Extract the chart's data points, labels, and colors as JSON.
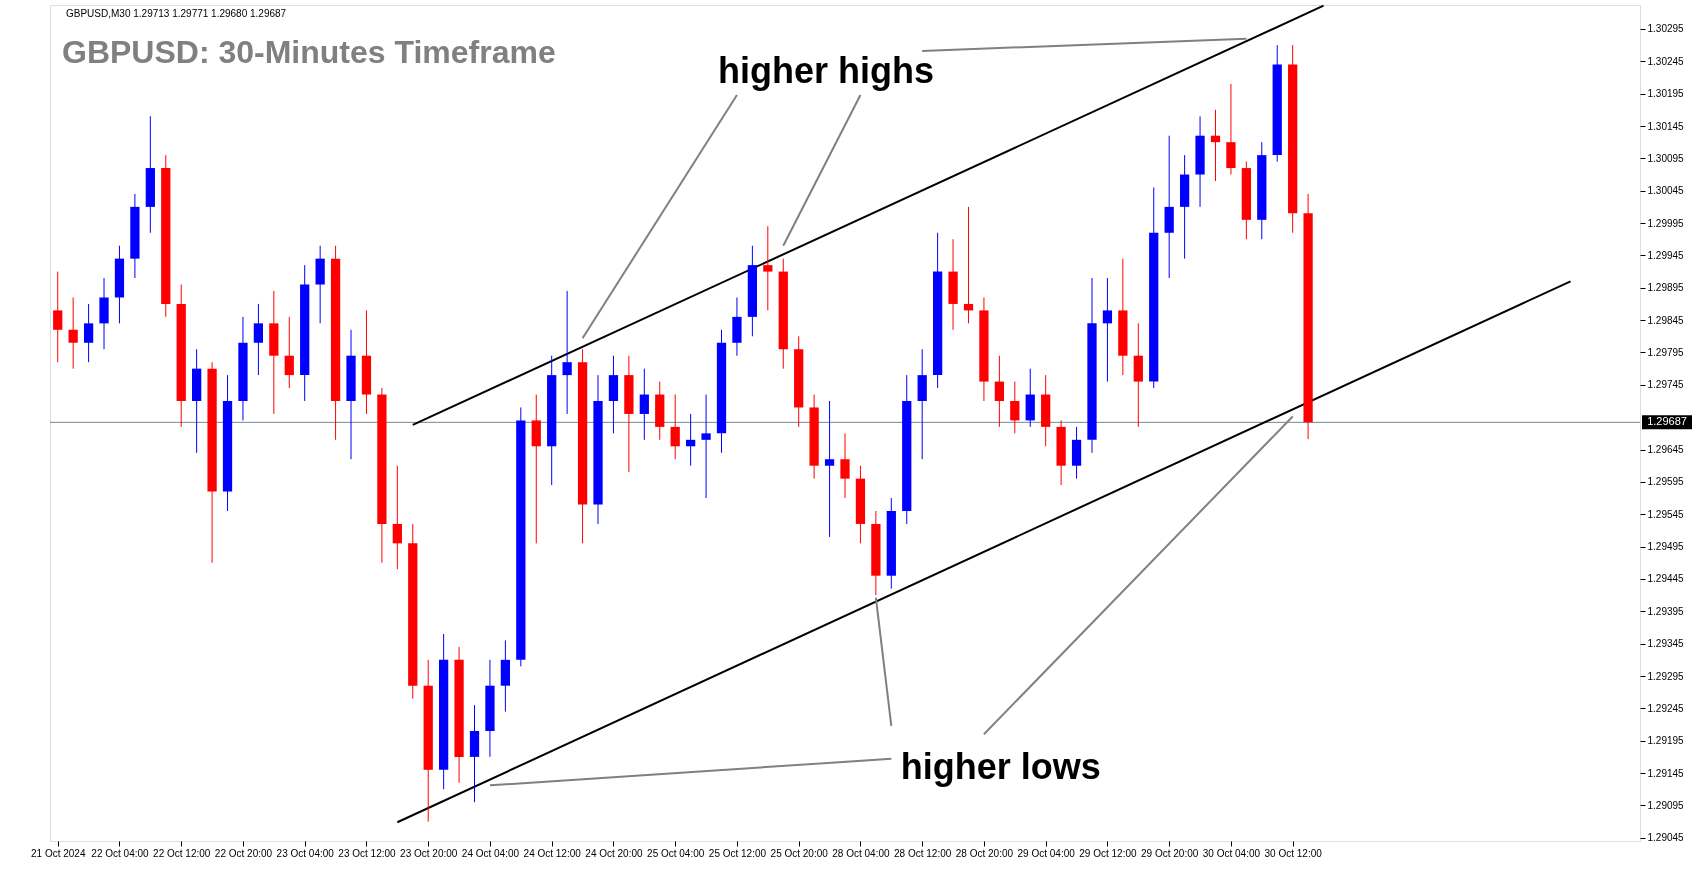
{
  "chart_data": {
    "type": "candlestick",
    "title": "GBPUSD: 30-Minutes Timeframe",
    "subtitle": "GBPUSD,M30  1.29713 1.29771 1.29680 1.29687",
    "categories": [
      "21 Oct 2024",
      null,
      null,
      null,
      "22 Oct 04:00",
      null,
      null,
      null,
      "22 Oct 12:00",
      null,
      null,
      null,
      "22 Oct 20:00",
      null,
      null,
      null,
      "23 Oct 04:00",
      null,
      null,
      null,
      "23 Oct 12:00",
      null,
      null,
      null,
      "23 Oct 20:00",
      null,
      null,
      null,
      "24 Oct 04:00",
      null,
      null,
      null,
      "24 Oct 12:00",
      null,
      null,
      null,
      "24 Oct 20:00",
      null,
      null,
      null,
      "25 Oct 04:00",
      null,
      null,
      null,
      "25 Oct 12:00",
      null,
      null,
      null,
      "25 Oct 20:00",
      null,
      null,
      null,
      "28 Oct 04:00",
      null,
      null,
      null,
      "28 Oct 12:00",
      null,
      null,
      null,
      "28 Oct 20:00",
      null,
      null,
      null,
      "29 Oct 04:00",
      null,
      null,
      null,
      "29 Oct 12:00",
      null,
      null,
      null,
      "29 Oct 20:00",
      null,
      null,
      null,
      "30 Oct 04:00",
      null,
      null,
      null,
      "30 Oct 12:00",
      null,
      null,
      null,
      null,
      null,
      null,
      null,
      null,
      null,
      null,
      null,
      null,
      null,
      null,
      null,
      null,
      null,
      null,
      null,
      null,
      null,
      null
    ],
    "ohlc": [
      [
        1.2986,
        1.2992,
        1.2978,
        1.2983
      ],
      [
        1.2983,
        1.2988,
        1.2977,
        1.2981
      ],
      [
        1.2981,
        1.2987,
        1.2978,
        1.2984
      ],
      [
        1.2984,
        1.2991,
        1.298,
        1.2988
      ],
      [
        1.2988,
        1.2996,
        1.2984,
        1.2994
      ],
      [
        1.2994,
        1.3004,
        1.2991,
        1.3002
      ],
      [
        1.3002,
        1.3016,
        1.2998,
        1.3008
      ],
      [
        1.3008,
        1.301,
        1.2985,
        1.2987
      ],
      [
        1.2987,
        1.299,
        1.2968,
        1.2972
      ],
      [
        1.2972,
        1.298,
        1.2964,
        1.2977
      ],
      [
        1.2977,
        1.2978,
        1.2947,
        1.2958
      ],
      [
        1.2958,
        1.2976,
        1.2955,
        1.2972
      ],
      [
        1.2972,
        1.2985,
        1.2969,
        1.2981
      ],
      [
        1.2981,
        1.2987,
        1.2976,
        1.2984
      ],
      [
        1.2984,
        1.2989,
        1.297,
        1.2979
      ],
      [
        1.2979,
        1.2985,
        1.2974,
        1.2976
      ],
      [
        1.2976,
        1.2993,
        1.2972,
        1.299
      ],
      [
        1.299,
        1.2996,
        1.2984,
        1.2994
      ],
      [
        1.2994,
        1.2996,
        1.2966,
        1.2972
      ],
      [
        1.2972,
        1.2983,
        1.2963,
        1.2979
      ],
      [
        1.2979,
        1.2986,
        1.297,
        1.2973
      ],
      [
        1.2973,
        1.2974,
        1.2947,
        1.2953
      ],
      [
        1.2953,
        1.2962,
        1.2946,
        1.295
      ],
      [
        1.295,
        1.2953,
        1.2926,
        1.2928
      ],
      [
        1.2928,
        1.2932,
        1.2907,
        1.2915
      ],
      [
        1.2915,
        1.2936,
        1.2912,
        1.2932
      ],
      [
        1.2932,
        1.2934,
        1.2913,
        1.2917
      ],
      [
        1.2917,
        1.2925,
        1.291,
        1.2921
      ],
      [
        1.2921,
        1.2932,
        1.2917,
        1.2928
      ],
      [
        1.2928,
        1.2935,
        1.2924,
        1.2932
      ],
      [
        1.2932,
        1.2971,
        1.2931,
        1.2969
      ],
      [
        1.2969,
        1.2973,
        1.295,
        1.2965
      ],
      [
        1.2965,
        1.2979,
        1.2959,
        1.2976
      ],
      [
        1.2976,
        1.2989,
        1.297,
        1.2978
      ],
      [
        1.2978,
        1.298,
        1.295,
        1.2956
      ],
      [
        1.2956,
        1.2976,
        1.2953,
        1.2972
      ],
      [
        1.2972,
        1.2979,
        1.2967,
        1.2976
      ],
      [
        1.2976,
        1.2979,
        1.2961,
        1.297
      ],
      [
        1.297,
        1.2977,
        1.2966,
        1.2973
      ],
      [
        1.2973,
        1.2975,
        1.2966,
        1.2968
      ],
      [
        1.2968,
        1.2973,
        1.2963,
        1.2965
      ],
      [
        1.2965,
        1.297,
        1.2962,
        1.2966
      ],
      [
        1.2966,
        1.2973,
        1.2957,
        1.2967
      ],
      [
        1.2967,
        1.2983,
        1.2964,
        1.2981
      ],
      [
        1.2981,
        1.2988,
        1.2979,
        1.2985
      ],
      [
        1.2985,
        1.2996,
        1.2982,
        1.2993
      ],
      [
        1.2993,
        1.2999,
        1.2986,
        1.2992
      ],
      [
        1.2992,
        1.2994,
        1.2977,
        1.298
      ],
      [
        1.298,
        1.2982,
        1.2968,
        1.2971
      ],
      [
        1.2971,
        1.2973,
        1.296,
        1.2962
      ],
      [
        1.2962,
        1.2972,
        1.2951,
        1.2963
      ],
      [
        1.2963,
        1.2967,
        1.2957,
        1.296
      ],
      [
        1.296,
        1.2962,
        1.295,
        1.2953
      ],
      [
        1.2953,
        1.2955,
        1.2942,
        1.2945
      ],
      [
        1.2945,
        1.2957,
        1.2943,
        1.2955
      ],
      [
        1.2955,
        1.2976,
        1.2953,
        1.2972
      ],
      [
        1.2972,
        1.298,
        1.2963,
        1.2976
      ],
      [
        1.2976,
        1.2998,
        1.2974,
        1.2992
      ],
      [
        1.2992,
        1.2997,
        1.2983,
        1.2987
      ],
      [
        1.2987,
        1.3002,
        1.2984,
        1.2986
      ],
      [
        1.2986,
        1.2988,
        1.2972,
        1.2975
      ],
      [
        1.2975,
        1.2979,
        1.2968,
        1.2972
      ],
      [
        1.2972,
        1.2975,
        1.2967,
        1.2969
      ],
      [
        1.2969,
        1.2977,
        1.2968,
        1.2973
      ],
      [
        1.2973,
        1.2976,
        1.2965,
        1.2968
      ],
      [
        1.2968,
        1.2969,
        1.2959,
        1.2962
      ],
      [
        1.2962,
        1.2968,
        1.296,
        1.2966
      ],
      [
        1.2966,
        1.2991,
        1.2964,
        1.2984
      ],
      [
        1.2984,
        1.2991,
        1.2975,
        1.2986
      ],
      [
        1.2986,
        1.2994,
        1.2976,
        1.2979
      ],
      [
        1.2979,
        1.2984,
        1.2968,
        1.2975
      ],
      [
        1.2975,
        1.3005,
        1.2974,
        1.2998
      ],
      [
        1.2998,
        1.3013,
        1.2991,
        1.3002
      ],
      [
        1.3002,
        1.301,
        1.2994,
        1.3007
      ],
      [
        1.3007,
        1.3016,
        1.3002,
        1.3013
      ],
      [
        1.3013,
        1.3017,
        1.3006,
        1.3012
      ],
      [
        1.3012,
        1.3021,
        1.3007,
        1.3008
      ],
      [
        1.3008,
        1.3009,
        1.2997,
        1.3
      ],
      [
        1.3,
        1.3012,
        1.2997,
        1.301
      ],
      [
        1.301,
        1.3027,
        1.3009,
        1.3024
      ],
      [
        1.3024,
        1.3027,
        1.2998,
        1.3001
      ],
      [
        1.3001,
        1.3004,
        1.29661,
        1.29687
      ],
      null,
      null,
      null,
      null,
      null,
      null,
      null,
      null,
      null,
      null,
      null,
      null,
      null,
      null,
      null,
      null,
      null,
      null,
      null,
      null,
      null
    ],
    "colors": [
      "#ff0000",
      "#ff0000",
      "#0000ff",
      "#0000ff",
      "#0000ff",
      "#0000ff",
      "#0000ff",
      "#ff0000",
      "#ff0000",
      "#0000ff",
      "#ff0000",
      "#0000ff",
      "#0000ff",
      "#0000ff",
      "#ff0000",
      "#ff0000",
      "#0000ff",
      "#0000ff",
      "#ff0000",
      "#0000ff",
      "#ff0000",
      "#ff0000",
      "#ff0000",
      "#ff0000",
      "#ff0000",
      "#0000ff",
      "#ff0000",
      "#0000ff",
      "#0000ff",
      "#0000ff",
      "#0000ff",
      "#ff0000",
      "#0000ff",
      "#0000ff",
      "#ff0000",
      "#0000ff",
      "#0000ff",
      "#ff0000",
      "#0000ff",
      "#ff0000",
      "#ff0000",
      "#0000ff",
      "#0000ff",
      "#0000ff",
      "#0000ff",
      "#0000ff",
      "#ff0000",
      "#ff0000",
      "#ff0000",
      "#ff0000",
      "#0000ff",
      "#ff0000",
      "#ff0000",
      "#ff0000",
      "#0000ff",
      "#0000ff",
      "#0000ff",
      "#0000ff",
      "#ff0000",
      "#ff0000",
      "#ff0000",
      "#ff0000",
      "#ff0000",
      "#0000ff",
      "#ff0000",
      "#ff0000",
      "#0000ff",
      "#0000ff",
      "#0000ff",
      "#ff0000",
      "#ff0000",
      "#0000ff",
      "#0000ff",
      "#0000ff",
      "#0000ff",
      "#ff0000",
      "#ff0000",
      "#ff0000",
      "#0000ff",
      "#0000ff",
      "#ff0000",
      "#ff0000",
      null,
      null,
      null,
      null,
      null,
      null,
      null,
      null,
      null,
      null,
      null,
      null,
      null,
      null,
      null,
      null,
      null,
      null,
      null,
      null,
      null
    ],
    "series": [
      {
        "type": "line",
        "color": "#000000",
        "values": [
          null,
          null,
          null,
          null,
          null,
          null,
          null,
          null,
          null,
          null,
          null,
          null,
          null,
          null,
          null,
          null,
          null,
          null,
          null,
          null,
          null,
          null,
          null,
          1.29683,
          null,
          null,
          null,
          null,
          null,
          null,
          null,
          null,
          null,
          null,
          null,
          null,
          null,
          null,
          null,
          null,
          null,
          null,
          null,
          null,
          null,
          null,
          null,
          null,
          null,
          null,
          null,
          null,
          null,
          null,
          null,
          null,
          null,
          null,
          null,
          null,
          null,
          null,
          null,
          null,
          null,
          null,
          null,
          null,
          null,
          null,
          null,
          null,
          null,
          null,
          null,
          null,
          null,
          null,
          null,
          null,
          null,
          null,
          1.30331,
          null,
          null,
          null,
          null,
          null,
          null,
          null,
          null,
          null,
          null,
          null,
          null,
          null,
          null,
          null,
          null,
          null,
          null,
          null,
          null
        ]
      },
      {
        "type": "line",
        "color": "#000000",
        "values": [
          null,
          null,
          null,
          null,
          null,
          null,
          null,
          null,
          null,
          null,
          null,
          null,
          null,
          null,
          null,
          null,
          null,
          null,
          null,
          null,
          null,
          null,
          1.29069,
          null,
          null,
          null,
          null,
          null,
          null,
          null,
          null,
          null,
          null,
          null,
          null,
          null,
          null,
          null,
          null,
          null,
          null,
          null,
          null,
          null,
          null,
          null,
          null,
          null,
          null,
          null,
          null,
          null,
          null,
          null,
          null,
          null,
          null,
          null,
          null,
          null,
          null,
          null,
          null,
          null,
          null,
          null,
          null,
          null,
          null,
          null,
          null,
          null,
          null,
          null,
          null,
          null,
          null,
          null,
          null,
          null,
          null,
          null,
          null,
          null,
          null,
          null,
          null,
          null,
          null,
          null,
          null,
          null,
          null,
          null,
          null,
          null,
          null,
          null,
          1.29905,
          null,
          null,
          null,
          null
        ]
      },
      {
        "type": "line",
        "color": "#808080",
        "values": [
          null,
          null,
          null,
          null,
          null,
          null,
          null,
          null,
          null,
          null,
          null,
          null,
          null,
          null,
          null,
          null,
          null,
          null,
          null,
          null,
          null,
          null,
          null,
          null,
          null,
          null,
          null,
          null,
          null,
          null,
          null,
          null,
          null,
          null,
          1.29817,
          null,
          null,
          null,
          null,
          null,
          null,
          null,
          null,
          null,
          1.30193,
          null,
          null,
          null,
          null,
          null,
          null,
          null,
          null,
          null,
          null,
          null,
          null,
          null,
          null,
          null,
          null,
          null,
          null,
          null,
          null,
          null,
          null,
          null,
          null,
          null,
          null,
          null,
          null,
          null,
          null,
          null,
          null,
          null,
          null,
          null,
          null,
          null,
          null,
          null,
          null,
          null,
          null,
          null,
          null,
          null,
          null,
          null,
          null,
          null,
          null,
          null,
          null,
          null,
          null,
          null,
          null,
          null,
          null
        ]
      },
      {
        "type": "line",
        "color": "#808080",
        "values": [
          null,
          null,
          null,
          null,
          null,
          null,
          null,
          null,
          null,
          null,
          null,
          null,
          null,
          null,
          null,
          null,
          null,
          null,
          null,
          null,
          null,
          null,
          null,
          null,
          null,
          null,
          null,
          null,
          null,
          null,
          null,
          null,
          null,
          null,
          null,
          null,
          null,
          null,
          null,
          null,
          null,
          null,
          null,
          null,
          null,
          null,
          null,
          1.2996,
          null,
          null,
          null,
          null,
          1.30193,
          null,
          null,
          null,
          null,
          null,
          null,
          null,
          null,
          null,
          null,
          null,
          null,
          null,
          null,
          null,
          null,
          null,
          null,
          null,
          null,
          null,
          null,
          null,
          null,
          null,
          null,
          null,
          null,
          null,
          null,
          null,
          null,
          null,
          null,
          null,
          null,
          null,
          null,
          null,
          null,
          null,
          null,
          null,
          null,
          null,
          null,
          null,
          null,
          null,
          null
        ]
      },
      {
        "type": "line",
        "color": "#808080",
        "values": [
          null,
          null,
          null,
          null,
          null,
          null,
          null,
          null,
          null,
          null,
          null,
          null,
          null,
          null,
          null,
          null,
          null,
          null,
          null,
          null,
          null,
          null,
          null,
          null,
          null,
          null,
          null,
          null,
          null,
          null,
          null,
          null,
          null,
          null,
          null,
          null,
          null,
          null,
          null,
          null,
          null,
          null,
          null,
          null,
          null,
          null,
          null,
          null,
          null,
          null,
          null,
          null,
          null,
          null,
          null,
          null,
          1.30261,
          null,
          null,
          null,
          null,
          null,
          null,
          null,
          null,
          null,
          null,
          null,
          null,
          null,
          null,
          null,
          null,
          null,
          null,
          null,
          null,
          1.3028,
          null,
          null,
          null,
          null,
          null,
          null,
          null,
          null,
          null,
          null,
          null,
          null,
          null,
          null,
          null,
          null,
          null,
          null,
          null,
          null,
          null,
          null,
          null,
          null,
          null
        ]
      },
      {
        "type": "line",
        "color": "#808080",
        "values": [
          null,
          null,
          null,
          null,
          null,
          null,
          null,
          null,
          null,
          null,
          null,
          null,
          null,
          null,
          null,
          null,
          null,
          null,
          null,
          null,
          null,
          null,
          null,
          null,
          null,
          null,
          null,
          null,
          1.29126,
          null,
          null,
          null,
          null,
          null,
          null,
          null,
          null,
          null,
          null,
          null,
          null,
          null,
          null,
          null,
          null,
          null,
          null,
          null,
          null,
          null,
          null,
          null,
          null,
          null,
          1.29167,
          null,
          null,
          null,
          null,
          null,
          null,
          null,
          null,
          null,
          null,
          null,
          null,
          null,
          null,
          null,
          null,
          null,
          null,
          null,
          null,
          null,
          null,
          null,
          null,
          null,
          null,
          null,
          null,
          null,
          null,
          null,
          null,
          null,
          null,
          null,
          null,
          null,
          null,
          null,
          null,
          null,
          null,
          null,
          null,
          null,
          null,
          null,
          null
        ]
      },
      {
        "type": "line",
        "color": "#808080",
        "values": [
          null,
          null,
          null,
          null,
          null,
          null,
          null,
          null,
          null,
          null,
          null,
          null,
          null,
          null,
          null,
          null,
          null,
          null,
          null,
          null,
          null,
          null,
          null,
          null,
          null,
          null,
          null,
          null,
          null,
          null,
          null,
          null,
          null,
          null,
          null,
          null,
          null,
          null,
          null,
          null,
          null,
          null,
          null,
          null,
          null,
          null,
          null,
          null,
          null,
          null,
          null,
          null,
          null,
          1.29416,
          1.29218,
          null,
          null,
          null,
          null,
          null,
          null,
          null,
          null,
          null,
          null,
          null,
          null,
          null,
          null,
          null,
          null,
          null,
          null,
          null,
          null,
          null,
          null,
          null,
          null,
          null,
          null,
          null,
          null,
          null,
          null,
          null,
          null,
          null,
          null,
          null,
          null,
          null,
          null,
          null,
          null,
          null,
          null,
          null,
          null,
          null,
          null,
          null,
          null
        ]
      },
      {
        "type": "line",
        "color": "#808080",
        "values": [
          null,
          null,
          null,
          null,
          null,
          null,
          null,
          null,
          null,
          null,
          null,
          null,
          null,
          null,
          null,
          null,
          null,
          null,
          null,
          null,
          null,
          null,
          null,
          null,
          null,
          null,
          null,
          null,
          null,
          null,
          null,
          null,
          null,
          null,
          null,
          null,
          null,
          null,
          null,
          null,
          null,
          null,
          null,
          null,
          null,
          null,
          null,
          null,
          null,
          null,
          null,
          null,
          null,
          null,
          null,
          null,
          null,
          null,
          null,
          null,
          1.29205,
          null,
          null,
          null,
          null,
          null,
          null,
          null,
          null,
          null,
          null,
          null,
          null,
          null,
          null,
          null,
          null,
          null,
          null,
          null,
          1.29696,
          null,
          null,
          null,
          null,
          null,
          null,
          null,
          null,
          null,
          null,
          null,
          null,
          null,
          null,
          null,
          null,
          null,
          null,
          null,
          null,
          null,
          null
        ]
      }
    ],
    "annotations": [
      "higher highs",
      "higher lows"
    ],
    "ref_lines": [
      {
        "axis": "y",
        "value": 1.29687,
        "label": "1.29687",
        "color": "#778899"
      }
    ],
    "ylim": [
      1.2904,
      1.30332
    ],
    "yticks": [
      1.30295,
      1.30245,
      1.30195,
      1.30145,
      1.30095,
      1.30045,
      1.29995,
      1.29945,
      1.29895,
      1.29845,
      1.29795,
      1.29745,
      1.29645,
      1.29595,
      1.29545,
      1.29495,
      1.29445,
      1.29395,
      1.29345,
      1.29295,
      1.29245,
      1.29195,
      1.29145,
      1.29095,
      1.29045
    ],
    "grid": false
  }
}
